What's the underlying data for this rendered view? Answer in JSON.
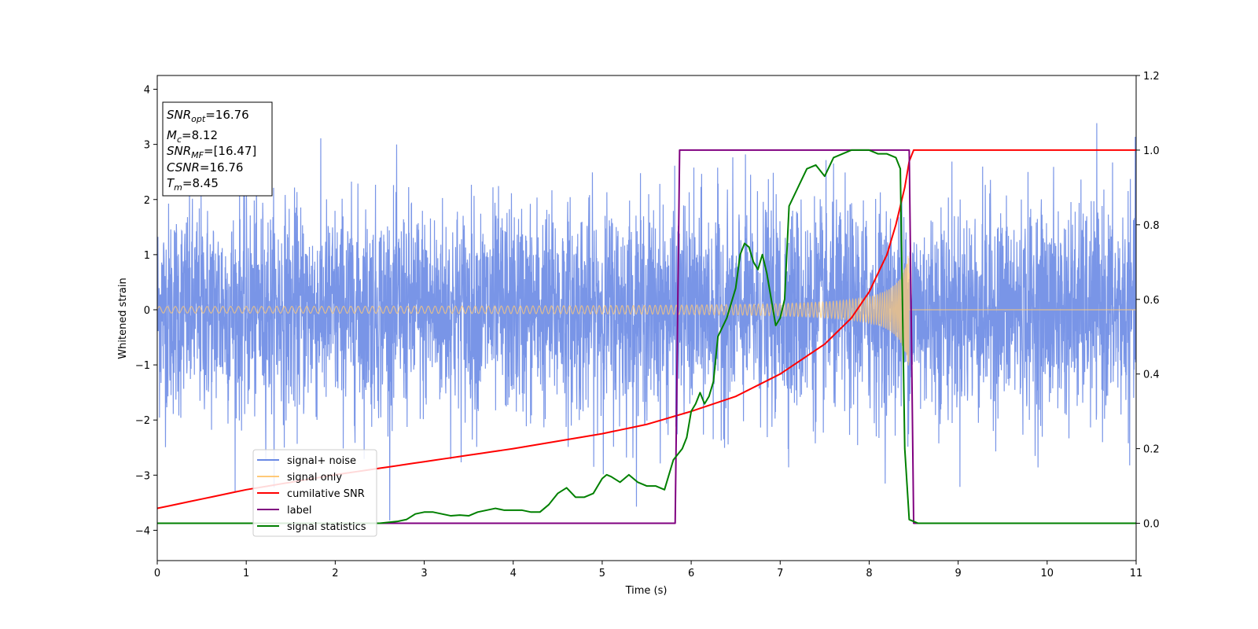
{
  "chart_data": {
    "type": "line",
    "xlabel": "Time (s)",
    "ylabel": "Whitened strain",
    "xlim": [
      0,
      11
    ],
    "ylim_left": [
      -4.55,
      4.25
    ],
    "ylim_right": [
      -0.1,
      1.2
    ],
    "xticks": [
      "0",
      "1",
      "2",
      "3",
      "4",
      "5",
      "6",
      "7",
      "8",
      "9",
      "10",
      "11"
    ],
    "yticks_left": [
      "−4",
      "−3",
      "−2",
      "−1",
      "0",
      "1",
      "2",
      "3",
      "4"
    ],
    "yticks_right": [
      "0.0",
      "0.2",
      "0.4",
      "0.6",
      "0.8",
      "1.0",
      "1.2"
    ],
    "grid": false,
    "legend_position": "lower-left",
    "info_box": {
      "snr_opt": {
        "symbol": "SNR",
        "sub": "opt",
        "value": "=16.76"
      },
      "mc": {
        "symbol": "M",
        "sub": "c",
        "value": "=8.12"
      },
      "snr_mf": {
        "symbol": "SNR",
        "sub": "MF",
        "value": "=[16.47]"
      },
      "csnr": {
        "symbol": "CSNR",
        "value": "=16.76"
      },
      "tm": {
        "symbol": "T",
        "sub": "m",
        "value": "=8.45"
      }
    },
    "series": [
      {
        "name": "signal+ noise",
        "axis": "left",
        "color": "#6a89e4",
        "description_stats": {
          "noise_std": 1.0,
          "t_range": [
            0,
            11
          ]
        }
      },
      {
        "name": "signal only",
        "axis": "left",
        "color": "#ffc978",
        "chirp": {
          "merger_time": 8.45,
          "amp_start": 0.05,
          "amp_peak": 1.1
        }
      },
      {
        "name": "cumilative SNR",
        "axis": "right",
        "color": "#ff0000",
        "x": [
          0,
          1,
          2,
          3,
          4,
          5,
          5.5,
          6,
          6.5,
          7,
          7.5,
          7.8,
          8.0,
          8.2,
          8.3,
          8.4,
          8.45,
          8.5,
          11
        ],
        "y": [
          0.04,
          0.09,
          0.13,
          0.165,
          0.2,
          0.24,
          0.265,
          0.3,
          0.34,
          0.4,
          0.48,
          0.55,
          0.62,
          0.72,
          0.8,
          0.9,
          0.97,
          1.0,
          1.0
        ]
      },
      {
        "name": "label",
        "axis": "right",
        "color": "#800080",
        "x": [
          0,
          5.82,
          5.87,
          8.45,
          8.5,
          11
        ],
        "y": [
          0.0,
          0.0,
          1.0,
          1.0,
          0.0,
          0.0
        ]
      },
      {
        "name": "signal statistics",
        "axis": "right",
        "color": "#008000",
        "x": [
          0,
          0.5,
          1,
          1.5,
          2,
          2.5,
          2.7,
          2.8,
          2.9,
          3.0,
          3.1,
          3.2,
          3.3,
          3.4,
          3.5,
          3.6,
          3.7,
          3.8,
          3.9,
          4.0,
          4.1,
          4.2,
          4.3,
          4.4,
          4.5,
          4.6,
          4.7,
          4.8,
          4.9,
          5.0,
          5.05,
          5.1,
          5.2,
          5.3,
          5.4,
          5.5,
          5.6,
          5.7,
          5.8,
          5.9,
          5.95,
          6.0,
          6.05,
          6.1,
          6.15,
          6.2,
          6.25,
          6.3,
          6.4,
          6.5,
          6.55,
          6.6,
          6.65,
          6.7,
          6.75,
          6.8,
          6.85,
          6.9,
          6.95,
          7.0,
          7.05,
          7.1,
          7.2,
          7.3,
          7.4,
          7.5,
          7.6,
          7.7,
          7.8,
          7.9,
          8.0,
          8.1,
          8.2,
          8.3,
          8.35,
          8.4,
          8.45,
          8.5,
          8.55,
          8.6,
          11
        ],
        "y": [
          0.0,
          0.0,
          0.0,
          0.0,
          0.0,
          0.0,
          0.005,
          0.01,
          0.025,
          0.03,
          0.03,
          0.025,
          0.02,
          0.022,
          0.02,
          0.03,
          0.035,
          0.04,
          0.035,
          0.035,
          0.035,
          0.03,
          0.03,
          0.05,
          0.08,
          0.095,
          0.07,
          0.07,
          0.08,
          0.12,
          0.13,
          0.125,
          0.11,
          0.13,
          0.11,
          0.1,
          0.1,
          0.09,
          0.17,
          0.2,
          0.23,
          0.3,
          0.32,
          0.35,
          0.32,
          0.34,
          0.38,
          0.5,
          0.55,
          0.63,
          0.72,
          0.75,
          0.74,
          0.7,
          0.68,
          0.72,
          0.67,
          0.6,
          0.53,
          0.55,
          0.6,
          0.85,
          0.9,
          0.95,
          0.96,
          0.93,
          0.98,
          0.99,
          1.0,
          1.0,
          1.0,
          0.99,
          0.99,
          0.98,
          0.95,
          0.2,
          0.01,
          0.005,
          0.0,
          0.0,
          0.0
        ]
      }
    ]
  }
}
